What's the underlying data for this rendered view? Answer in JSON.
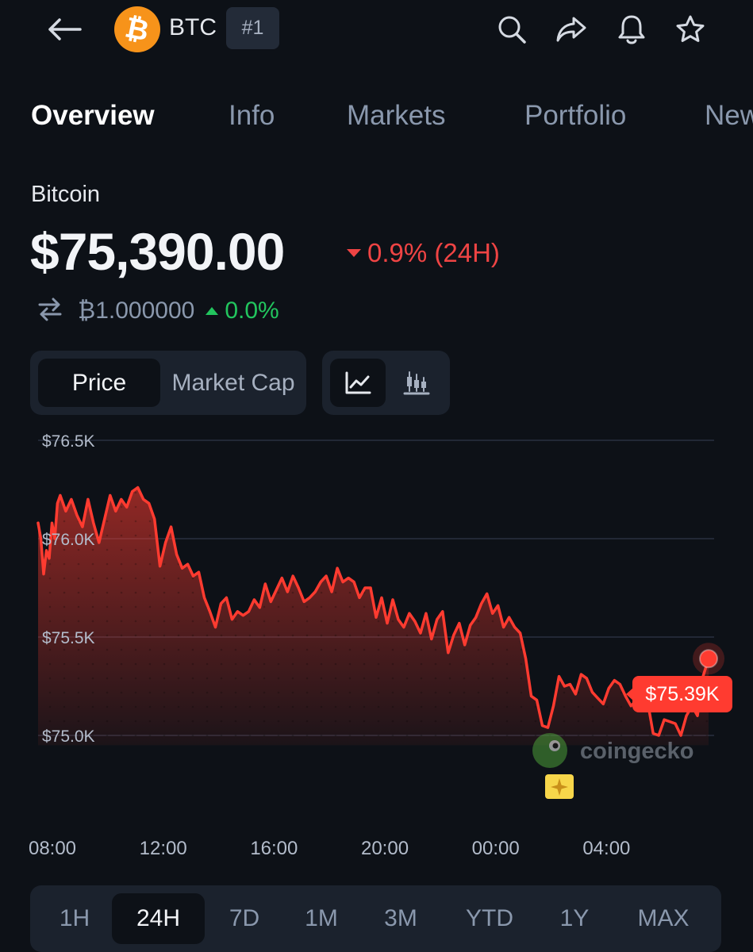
{
  "header": {
    "symbol": "BTC",
    "rank": "#1",
    "coin_logo_glyph": "₿",
    "icons": [
      "back-arrow-icon",
      "search-icon",
      "share-icon",
      "bell-icon",
      "star-icon"
    ]
  },
  "tabs": [
    {
      "label": "Overview",
      "active": true
    },
    {
      "label": "Info",
      "active": false
    },
    {
      "label": "Markets",
      "active": false
    },
    {
      "label": "Portfolio",
      "active": false
    },
    {
      "label": "News",
      "active": false
    }
  ],
  "coin": {
    "name": "Bitcoin",
    "price": "$75,390.00",
    "change_24h": "0.9% (24H)",
    "btc_value": "₿1.000000",
    "btc_change": "0.0%"
  },
  "toggles": {
    "price": "Price",
    "market_cap": "Market Cap",
    "line_icon": "line-chart-icon",
    "candle_icon": "candlestick-icon"
  },
  "chart": {
    "price_tag": "$75.39K",
    "watermark": "coingecko"
  },
  "ranges": [
    {
      "label": "1H",
      "active": false
    },
    {
      "label": "24H",
      "active": true
    },
    {
      "label": "7D",
      "active": false
    },
    {
      "label": "1M",
      "active": false
    },
    {
      "label": "3M",
      "active": false
    },
    {
      "label": "YTD",
      "active": false
    },
    {
      "label": "1Y",
      "active": false
    },
    {
      "label": "MAX",
      "active": false
    }
  ],
  "colors": {
    "background": "#0d1117",
    "negative": "#ef4444",
    "positive": "#22c55e",
    "bitcoin_orange": "#f7931a",
    "line": "#ff3b30"
  },
  "chart_data": {
    "type": "area",
    "title": "",
    "xlabel": "",
    "ylabel": "",
    "ylim": [
      74950,
      76550
    ],
    "y_ticks": [
      "$75.0K",
      "$75.5K",
      "$76.0K",
      "$76.5K"
    ],
    "y_tick_values": [
      75000,
      75500,
      76000,
      76500
    ],
    "x_ticks": [
      "08:00",
      "12:00",
      "16:00",
      "20:00",
      "00:00",
      "04:00"
    ],
    "x_tick_hours": [
      0,
      4,
      8,
      12,
      16,
      20
    ],
    "x_range_hours": [
      0,
      24.4
    ],
    "grid": true,
    "last_value_label": "$75.39K",
    "series": [
      {
        "x": [
          0.0,
          0.1,
          0.2,
          0.3,
          0.4,
          0.5,
          0.6,
          0.7,
          0.8,
          1.0,
          1.2,
          1.4,
          1.6,
          1.8,
          2.0,
          2.2,
          2.4,
          2.6,
          2.8,
          3.0,
          3.2,
          3.4,
          3.6,
          3.8,
          4.0,
          4.2,
          4.4,
          4.6,
          4.8,
          5.0,
          5.2,
          5.4,
          5.6,
          5.8,
          6.0,
          6.2,
          6.4,
          6.6,
          6.8,
          7.0,
          7.2,
          7.4,
          7.6,
          7.8,
          8.0,
          8.2,
          8.4,
          8.6,
          8.8,
          9.0,
          9.2,
          9.4,
          9.6,
          9.8,
          10.0,
          10.2,
          10.4,
          10.6,
          10.8,
          11.0,
          11.2,
          11.4,
          11.6,
          11.8,
          12.0,
          12.2,
          12.4,
          12.6,
          12.8,
          13.0,
          13.2,
          13.4,
          13.6,
          13.8,
          14.0,
          14.2,
          14.4,
          14.6,
          14.8,
          15.0,
          15.2,
          15.4,
          15.6,
          15.8,
          16.0,
          16.2,
          16.4,
          16.6,
          16.8,
          17.0,
          17.2,
          17.4,
          17.6,
          17.8,
          18.0,
          18.2,
          18.4,
          18.6,
          18.8,
          19.0,
          19.2,
          19.4,
          19.6,
          19.8,
          20.0,
          20.2,
          20.4,
          20.6,
          20.8,
          21.0,
          21.2,
          21.4,
          21.6,
          21.8,
          22.0,
          22.2,
          22.4,
          22.6,
          22.8,
          23.0,
          23.2,
          23.4,
          23.6,
          23.8,
          24.0,
          24.2
        ],
        "y": [
          76080,
          76000,
          75820,
          75940,
          75900,
          76080,
          76000,
          76180,
          76220,
          76140,
          76200,
          76120,
          76060,
          76200,
          76080,
          75980,
          76100,
          76220,
          76140,
          76200,
          76160,
          76240,
          76260,
          76200,
          76180,
          76100,
          75860,
          75980,
          76060,
          75920,
          75850,
          75870,
          75810,
          75830,
          75700,
          75630,
          75550,
          75670,
          75700,
          75590,
          75630,
          75610,
          75630,
          75690,
          75650,
          75770,
          75680,
          75740,
          75800,
          75730,
          75810,
          75750,
          75680,
          75700,
          75730,
          75780,
          75810,
          75730,
          75850,
          75780,
          75800,
          75780,
          75700,
          75750,
          75750,
          75600,
          75700,
          75570,
          75690,
          75590,
          75550,
          75620,
          75580,
          75520,
          75620,
          75490,
          75590,
          75630,
          75420,
          75510,
          75570,
          75460,
          75560,
          75600,
          75670,
          75720,
          75620,
          75660,
          75550,
          75600,
          75550,
          75520,
          75390,
          75200,
          75180,
          75050,
          75040,
          75150,
          75300,
          75250,
          75260,
          75210,
          75310,
          75290,
          75220,
          75190,
          75160,
          75240,
          75280,
          75260,
          75200,
          75150,
          75180,
          75260,
          75170,
          75010,
          75000,
          75080,
          75070,
          75060,
          75000,
          75100,
          75150,
          75100,
          75300,
          75390
        ]
      }
    ]
  }
}
